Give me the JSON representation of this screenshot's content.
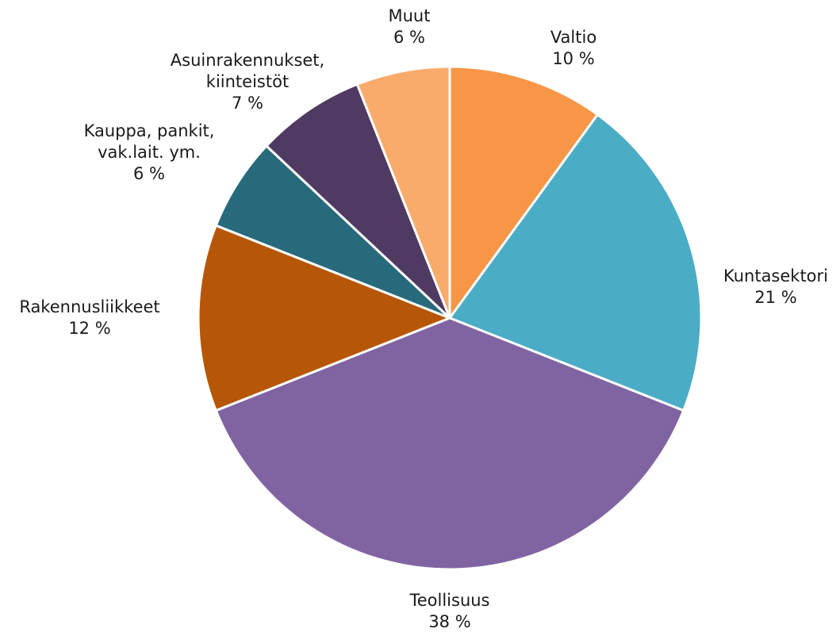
{
  "chart_data": {
    "type": "pie",
    "title": "",
    "slices": [
      {
        "name": "Valtio",
        "label_lines": [
          "Valtio"
        ],
        "value": 10,
        "value_label": "10 %",
        "color": "#F79646"
      },
      {
        "name": "Kuntasektori",
        "label_lines": [
          "Kuntasektori"
        ],
        "value": 21,
        "value_label": "21 %",
        "color": "#4BACC6"
      },
      {
        "name": "Teollisuus",
        "label_lines": [
          "Teollisuus"
        ],
        "value": 38,
        "value_label": "38 %",
        "color": "#8064A2"
      },
      {
        "name": "Rakennusliikkeet",
        "label_lines": [
          "Rakennusliikkeet"
        ],
        "value": 12,
        "value_label": "12 %",
        "color": "#B65708"
      },
      {
        "name": "Kauppa, pankit, vak.lait. ym.",
        "label_lines": [
          "Kauppa, pankit,",
          "vak.lait. ym."
        ],
        "value": 6,
        "value_label": "6 %",
        "color": "#276A7C"
      },
      {
        "name": "Asuinrakennukset, kiinteistöt",
        "label_lines": [
          "Asuinrakennukset,",
          "kiinteistöt"
        ],
        "value": 7,
        "value_label": "7 %",
        "color": "#4F3A62"
      },
      {
        "name": "Muut",
        "label_lines": [
          "Muut"
        ],
        "value": 6,
        "value_label": "6 %",
        "color": "#F9AB6B"
      }
    ],
    "start_angle_deg": 0,
    "direction": "clockwise"
  }
}
